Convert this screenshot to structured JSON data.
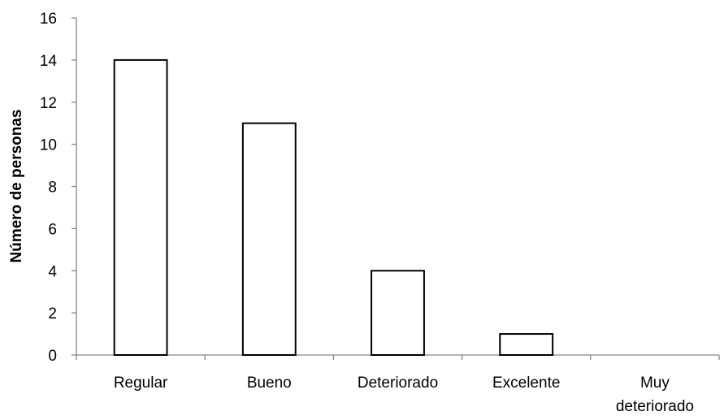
{
  "chart_data": {
    "type": "bar",
    "categories": [
      [
        "Regular"
      ],
      [
        "Bueno"
      ],
      [
        "Deteriorado"
      ],
      [
        "Excelente"
      ],
      [
        "Muy",
        "deteriorado"
      ]
    ],
    "values": [
      14,
      11,
      4,
      1,
      0
    ],
    "title": "",
    "xlabel": "",
    "ylabel": "Número de personas",
    "ylim": [
      0,
      16
    ],
    "yticks": [
      "0",
      "2",
      "4",
      "6",
      "8",
      "10",
      "12",
      "14",
      "16"
    ],
    "grid": false,
    "legend": "none",
    "colors": {
      "bar_fill": "#ffffff",
      "bar_stroke": "#000000",
      "axis": "#868686",
      "text": "#000000"
    }
  }
}
